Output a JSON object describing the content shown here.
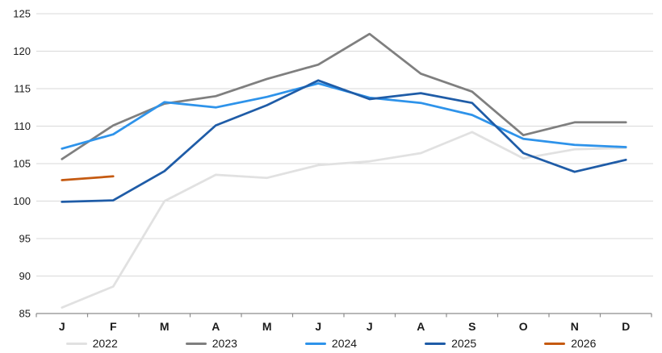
{
  "chart_data": {
    "type": "line",
    "title": "",
    "xlabel": "",
    "ylabel": "",
    "categories": [
      "J",
      "F",
      "M",
      "A",
      "M",
      "J",
      "J",
      "A",
      "S",
      "O",
      "N",
      "D"
    ],
    "series": [
      {
        "name": "2022",
        "color": "#e1e1e1",
        "values": [
          85.8,
          88.6,
          100.0,
          103.5,
          103.1,
          104.8,
          105.3,
          106.4,
          109.2,
          105.7,
          106.9,
          107.1
        ]
      },
      {
        "name": "2023",
        "color": "#7f7f7f",
        "values": [
          105.6,
          110.1,
          113.0,
          114.0,
          116.3,
          118.2,
          122.3,
          117.0,
          114.6,
          108.8,
          110.5,
          110.5
        ]
      },
      {
        "name": "2024",
        "color": "#2e93ea",
        "values": [
          107.0,
          108.9,
          113.2,
          112.5,
          113.9,
          115.7,
          113.8,
          113.1,
          111.5,
          108.3,
          107.5,
          107.2
        ]
      },
      {
        "name": "2025",
        "color": "#1f5ca7",
        "values": [
          99.9,
          100.1,
          104.0,
          110.1,
          112.8,
          116.1,
          113.6,
          114.4,
          113.1,
          106.4,
          103.9,
          105.5
        ]
      },
      {
        "name": "2026",
        "color": "#c55a11",
        "values": [
          102.8,
          103.3
        ]
      }
    ],
    "ylim": [
      85,
      125
    ],
    "ytick_step": 5,
    "y_tick_labels": [
      "125",
      "120",
      "115",
      "110",
      "105",
      "100",
      "95",
      "90",
      "85"
    ],
    "grid": true,
    "legend_position": "bottom",
    "legend_labels": [
      "2022",
      "2023",
      "2024",
      "2025",
      "2026"
    ]
  },
  "styles": {
    "grid_color": "#d9d9d9",
    "axis_color": "#8c8c8c",
    "tick_color": "#8c8c8c",
    "text_color": "#1a1a1a",
    "background": "#ffffff"
  }
}
